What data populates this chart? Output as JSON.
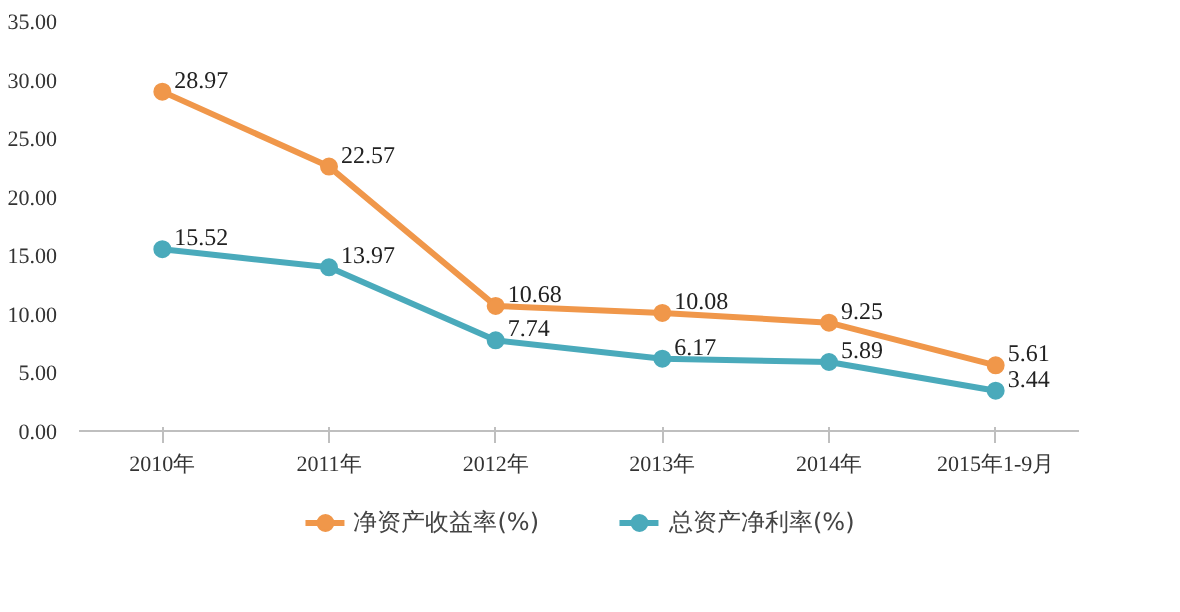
{
  "chart_data": {
    "type": "line",
    "categories": [
      "2010年",
      "2011年",
      "2012年",
      "2013年",
      "2014年",
      "2015年1-9月"
    ],
    "series": [
      {
        "name": "净资产收益率(%)",
        "color": "#f0974a",
        "values": [
          28.97,
          22.57,
          10.68,
          10.08,
          9.25,
          5.61
        ]
      },
      {
        "name": "总资产净利率(%)",
        "color": "#4aaabb",
        "values": [
          15.52,
          13.97,
          7.74,
          6.17,
          5.89,
          3.44
        ]
      }
    ],
    "ylim": [
      0,
      35
    ],
    "yticks": [
      {
        "value": 0,
        "label": "0.00"
      },
      {
        "value": 5,
        "label": "5.00"
      },
      {
        "value": 10,
        "label": "10.00"
      },
      {
        "value": 15,
        "label": "15.00"
      },
      {
        "value": 20,
        "label": "20.00"
      },
      {
        "value": 25,
        "label": "25.00"
      },
      {
        "value": 30,
        "label": "30.00"
      },
      {
        "value": 35,
        "label": "35.00"
      }
    ],
    "data_labels": true,
    "marker": "circle",
    "line_style": "solid",
    "grid": false,
    "legend": "bottom"
  }
}
